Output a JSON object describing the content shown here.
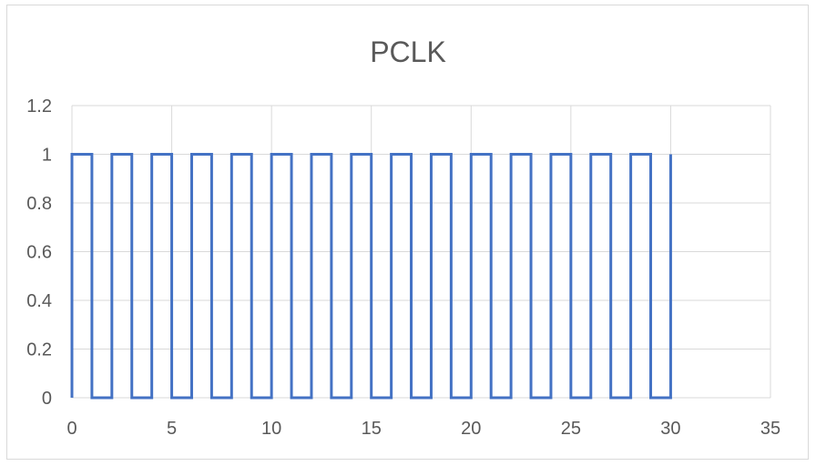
{
  "chart_data": {
    "type": "line",
    "title": "PCLK",
    "xlabel": "",
    "ylabel": "",
    "xlim": [
      0,
      35
    ],
    "ylim": [
      0,
      1.2
    ],
    "x_ticks": [
      0,
      5,
      10,
      15,
      20,
      25,
      30,
      35
    ],
    "y_ticks": [
      0,
      0.2,
      0.4,
      0.6,
      0.8,
      1,
      1.2
    ],
    "x_tick_labels": [
      "0",
      "5",
      "10",
      "15",
      "20",
      "25",
      "30",
      "35"
    ],
    "y_tick_labels": [
      "0",
      "0.2",
      "0.4",
      "0.6",
      "0.8",
      "1",
      "1.2"
    ],
    "grid": true,
    "legend": "none",
    "series": [
      {
        "color": "#4472C4",
        "x": [
          0,
          0,
          1,
          1,
          2,
          2,
          3,
          3,
          4,
          4,
          5,
          5,
          6,
          6,
          7,
          7,
          8,
          8,
          9,
          9,
          10,
          10,
          11,
          11,
          12,
          12,
          13,
          13,
          14,
          14,
          15,
          15,
          16,
          16,
          17,
          17,
          18,
          18,
          19,
          19,
          20,
          20,
          21,
          21,
          22,
          22,
          23,
          23,
          24,
          24,
          25,
          25,
          26,
          26,
          27,
          27,
          28,
          28,
          29,
          29,
          30,
          30
        ],
        "y": [
          0,
          1,
          1,
          0,
          0,
          1,
          1,
          0,
          0,
          1,
          1,
          0,
          0,
          1,
          1,
          0,
          0,
          1,
          1,
          0,
          0,
          1,
          1,
          0,
          0,
          1,
          1,
          0,
          0,
          1,
          1,
          0,
          0,
          1,
          1,
          0,
          0,
          1,
          1,
          0,
          0,
          1,
          1,
          0,
          0,
          1,
          1,
          0,
          0,
          1,
          1,
          0,
          0,
          1,
          1,
          0,
          0,
          1,
          1,
          0,
          0,
          1
        ]
      }
    ]
  },
  "colors": {
    "line": "#4472C4",
    "grid": "#d9d9d9",
    "text": "#595959"
  }
}
